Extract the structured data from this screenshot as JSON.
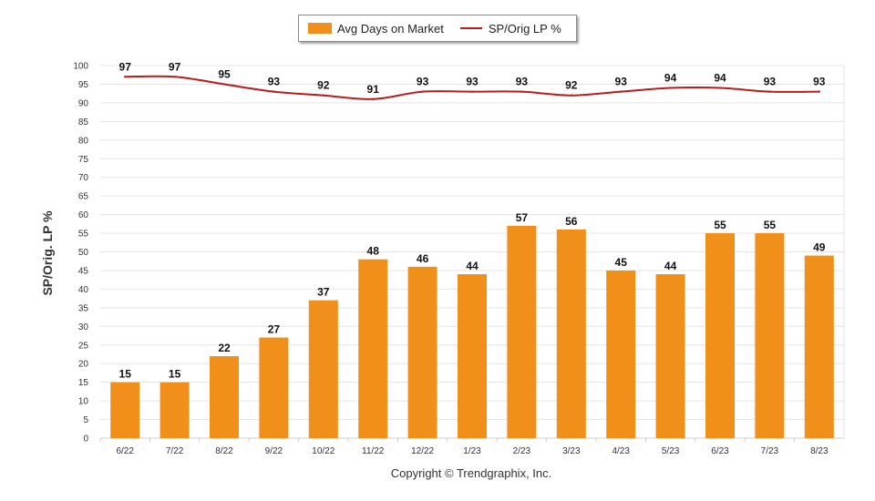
{
  "legend": {
    "bar_label": "Avg Days on Market",
    "line_label": "SP/Orig LP %"
  },
  "copyright": "Copyright © Trendgraphix, Inc.",
  "chart_data": {
    "type": "bar",
    "categories": [
      "6/22",
      "7/22",
      "8/22",
      "9/22",
      "10/22",
      "11/22",
      "12/22",
      "1/23",
      "2/23",
      "3/23",
      "4/23",
      "5/23",
      "6/23",
      "7/23",
      "8/23"
    ],
    "series": [
      {
        "name": "Avg Days on Market",
        "type": "bar",
        "color": "#F0901A",
        "values": [
          15,
          15,
          22,
          27,
          37,
          48,
          46,
          44,
          57,
          56,
          45,
          44,
          55,
          55,
          49
        ]
      },
      {
        "name": "SP/Orig LP %",
        "type": "line",
        "color": "#B81C1C",
        "values": [
          97,
          97,
          95,
          93,
          92,
          91,
          93,
          93,
          93,
          92,
          93,
          94,
          94,
          93,
          93
        ]
      }
    ],
    "ylabel": "SP/Orig. LP %",
    "ylim": [
      0,
      100
    ],
    "yticks": [
      0,
      5,
      10,
      15,
      20,
      25,
      30,
      35,
      40,
      45,
      50,
      55,
      60,
      65,
      70,
      75,
      80,
      85,
      90,
      95,
      100
    ],
    "grid": true,
    "legend_position": "top-center"
  }
}
